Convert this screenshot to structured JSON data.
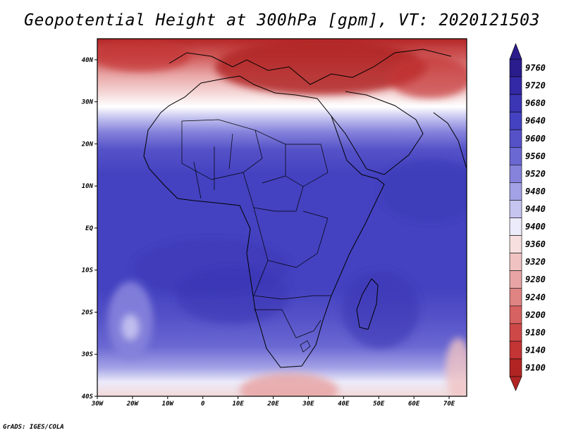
{
  "title": "Geopotential Height at 300hPa [gpm], VT: 2020121503",
  "footer": "GrADS: IGES/COLA",
  "map": {
    "lon_range": [
      -30,
      75
    ],
    "lat_range": [
      -40,
      45
    ],
    "lat_ticks": [
      {
        "value": 40,
        "label": "40N"
      },
      {
        "value": 30,
        "label": "30N"
      },
      {
        "value": 20,
        "label": "20N"
      },
      {
        "value": 10,
        "label": "10N"
      },
      {
        "value": 0,
        "label": "EQ"
      },
      {
        "value": -10,
        "label": "10S"
      },
      {
        "value": -20,
        "label": "20S"
      },
      {
        "value": -30,
        "label": "30S"
      },
      {
        "value": -40,
        "label": "40S"
      }
    ],
    "lon_ticks": [
      {
        "value": -30,
        "label": "30W"
      },
      {
        "value": -20,
        "label": "20W"
      },
      {
        "value": -10,
        "label": "10W"
      },
      {
        "value": 0,
        "label": "0"
      },
      {
        "value": 10,
        "label": "10E"
      },
      {
        "value": 20,
        "label": "20E"
      },
      {
        "value": 30,
        "label": "30E"
      },
      {
        "value": 40,
        "label": "40E"
      },
      {
        "value": 50,
        "label": "50E"
      },
      {
        "value": 60,
        "label": "60E"
      },
      {
        "value": 70,
        "label": "70E"
      }
    ]
  },
  "colorbar": {
    "levels": [
      {
        "label": "9760",
        "color": "#2a1c8c"
      },
      {
        "label": "9720",
        "color": "#3329a6"
      },
      {
        "label": "9680",
        "color": "#3a36b4"
      },
      {
        "label": "9640",
        "color": "#4442c0"
      },
      {
        "label": "9600",
        "color": "#5552c8"
      },
      {
        "label": "9560",
        "color": "#6a68d2"
      },
      {
        "label": "9520",
        "color": "#8683dc"
      },
      {
        "label": "9480",
        "color": "#a4a2e6"
      },
      {
        "label": "9440",
        "color": "#c6c5f0"
      },
      {
        "label": "9400",
        "color": "#ecebfa"
      },
      {
        "label": "9360",
        "color": "#f7dfdf"
      },
      {
        "label": "9320",
        "color": "#f0c3c3"
      },
      {
        "label": "9280",
        "color": "#e8a4a4"
      },
      {
        "label": "9240",
        "color": "#df8383"
      },
      {
        "label": "9200",
        "color": "#d66262"
      },
      {
        "label": "9180",
        "color": "#ce4848"
      },
      {
        "label": "9140",
        "color": "#c33434"
      },
      {
        "label": "9100",
        "color": "#b02424"
      }
    ]
  }
}
